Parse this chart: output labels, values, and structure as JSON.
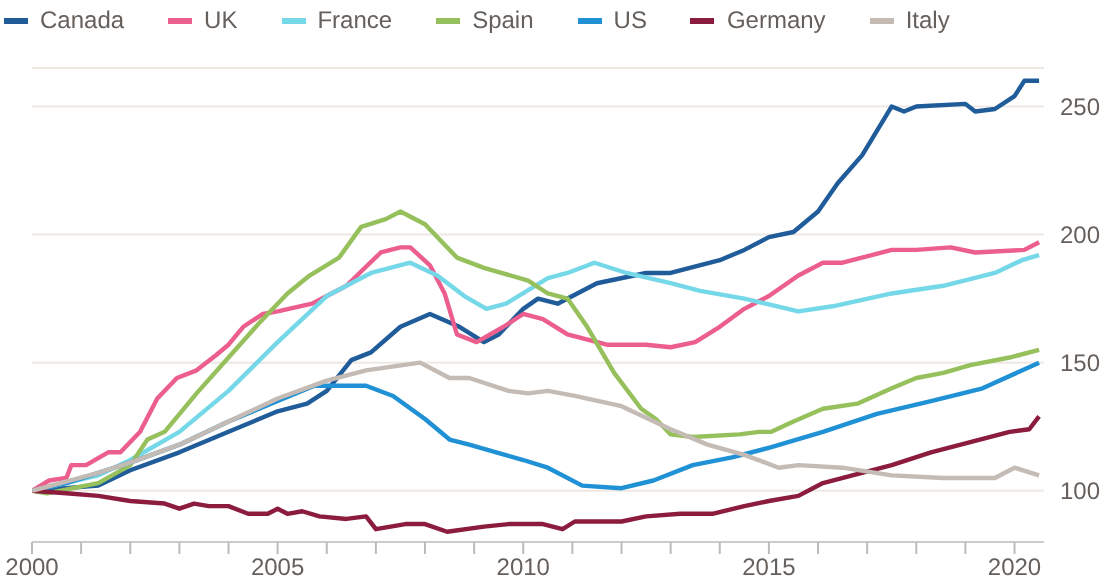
{
  "chart_data": {
    "type": "line",
    "xlim": [
      2000,
      2020.6
    ],
    "ylim": [
      80,
      265
    ],
    "xticks": [
      2000,
      {
        "value": 2001,
        "label": null
      },
      {
        "value": 2002,
        "label": null
      },
      {
        "value": 2003,
        "label": null
      },
      {
        "value": 2004,
        "label": null
      },
      2005,
      {
        "value": 2006,
        "label": null
      },
      {
        "value": 2007,
        "label": null
      },
      {
        "value": 2008,
        "label": null
      },
      {
        "value": 2009,
        "label": null
      },
      2010,
      {
        "value": 2011,
        "label": null
      },
      {
        "value": 2012,
        "label": null
      },
      {
        "value": 2013,
        "label": null
      },
      {
        "value": 2014,
        "label": null
      },
      2015,
      {
        "value": 2016,
        "label": null
      },
      {
        "value": 2017,
        "label": null
      },
      {
        "value": 2018,
        "label": null
      },
      {
        "value": 2019,
        "label": null
      },
      2020
    ],
    "yticks": [
      100,
      150,
      200,
      250
    ],
    "grid": "y",
    "legend": "top left",
    "series": [
      {
        "name": "Canada",
        "color": "#1f5c99",
        "x": [
          2000,
          2001.35,
          2002,
          2003,
          2004,
          2005,
          2005.6,
          2006,
          2006.5,
          2006.9,
          2007.5,
          2008.1,
          2008.7,
          2009.2,
          2009.5,
          2010,
          2010.3,
          2010.7,
          2011.5,
          2012.5,
          2013,
          2014,
          2014.5,
          2015,
          2015.5,
          2016,
          2016.4,
          2016.9,
          2017.5,
          2017.75,
          2018,
          2019,
          2019.2,
          2019.6,
          2020,
          2020.2,
          2020.5
        ],
        "values": [
          100,
          102,
          108,
          115,
          123,
          131,
          134,
          139,
          151,
          154,
          164,
          169,
          164,
          158,
          161,
          171,
          175,
          173,
          181,
          185,
          185,
          190,
          194,
          199,
          201,
          209,
          220,
          231,
          250,
          248,
          250,
          251,
          248,
          249,
          254,
          260,
          260
        ]
      },
      {
        "name": "UK",
        "color": "#eb5e8d",
        "x": [
          2000,
          2000.35,
          2000.7,
          2000.8,
          2001.1,
          2001.55,
          2001.8,
          2002.2,
          2002.55,
          2002.95,
          2003.35,
          2003.75,
          2004,
          2004.3,
          2004.7,
          2005,
          2005.7,
          2006.4,
          2007.1,
          2007.5,
          2007.7,
          2008.1,
          2008.4,
          2008.65,
          2009.05,
          2009.6,
          2010,
          2010.4,
          2010.9,
          2011.7,
          2012.5,
          2013,
          2013.5,
          2014,
          2014.5,
          2015,
          2015.6,
          2016.1,
          2016.5,
          2017.5,
          2018,
          2018.7,
          2019.2,
          2020.2,
          2020.5
        ],
        "values": [
          100,
          104,
          105,
          110,
          110,
          115,
          115,
          123,
          136,
          144,
          147,
          153,
          157,
          164,
          169,
          170,
          173,
          180,
          193,
          195,
          195,
          188,
          177,
          161,
          158,
          164,
          169,
          167,
          161,
          157,
          157,
          156,
          158,
          164,
          171,
          176,
          184,
          189,
          189,
          194,
          194,
          195,
          193,
          194,
          197
        ]
      },
      {
        "name": "France",
        "color": "#75d8e8",
        "x": [
          2000,
          2001.35,
          2002,
          2003,
          2004,
          2005,
          2006,
          2006.9,
          2007.7,
          2008.25,
          2008.8,
          2009.25,
          2009.65,
          2010.5,
          2010.9,
          2011.45,
          2012.1,
          2013,
          2013.6,
          2014.5,
          2015.6,
          2016.3,
          2017.5,
          2018.55,
          2019.6,
          2020.15,
          2020.5
        ],
        "values": [
          100,
          106,
          112,
          123,
          139,
          158,
          176,
          185,
          189,
          184,
          176,
          171,
          173,
          183,
          185,
          189,
          185,
          181,
          178,
          175,
          170,
          172,
          177,
          180,
          185,
          190,
          192
        ]
      },
      {
        "name": "Spain",
        "color": "#96c05b",
        "x": [
          2000,
          2000.3,
          2001.35,
          2002,
          2002.35,
          2002.7,
          2003.35,
          2004,
          2004.65,
          2005.2,
          2005.65,
          2006.25,
          2006.7,
          2007.2,
          2007.5,
          2008,
          2008.65,
          2009.2,
          2010.1,
          2010.5,
          2010.9,
          2011.3,
          2011.85,
          2012.4,
          2012.7,
          2013,
          2013.45,
          2014.4,
          2014.8,
          2015.05,
          2015.5,
          2016.1,
          2016.8,
          2017.5,
          2018,
          2018.55,
          2019.1,
          2019.9,
          2020.5
        ],
        "values": [
          100,
          99,
          103,
          110,
          120,
          123,
          138,
          152,
          166,
          177,
          184,
          191,
          203,
          206,
          209,
          204,
          191,
          187,
          182,
          177,
          175,
          164,
          146,
          132,
          128,
          122,
          121,
          122,
          123,
          123,
          127,
          132,
          134,
          140,
          144,
          146,
          149,
          152,
          155
        ]
      },
      {
        "name": "US",
        "color": "#2091d5",
        "x": [
          2000,
          2000.7,
          2002,
          2003,
          2004,
          2005,
          2005.75,
          2006.25,
          2006.8,
          2007.35,
          2008,
          2008.5,
          2008.9,
          2009.45,
          2010,
          2010.5,
          2011.2,
          2012,
          2012.65,
          2013.45,
          2014.25,
          2015.05,
          2016.1,
          2017.2,
          2018.3,
          2019.35,
          2020.5
        ],
        "values": [
          100,
          103,
          111,
          118,
          127,
          135,
          141,
          141,
          141,
          137,
          128,
          120,
          118,
          115,
          112,
          109,
          102,
          101,
          104,
          110,
          113,
          117,
          123,
          130,
          135,
          140,
          150
        ]
      },
      {
        "name": "Germany",
        "color": "#8c1c3e",
        "x": [
          2000,
          2000.7,
          2001.35,
          2002,
          2002.7,
          2003,
          2003.3,
          2003.6,
          2004,
          2004.4,
          2004.8,
          2005,
          2005.2,
          2005.5,
          2005.85,
          2006.4,
          2006.8,
          2007,
          2007.6,
          2008,
          2008.45,
          2009.2,
          2009.7,
          2010.4,
          2010.8,
          2011.05,
          2012,
          2012.5,
          2013.2,
          2013.85,
          2014.5,
          2015,
          2015.6,
          2016.1,
          2016.7,
          2017.5,
          2018.3,
          2019.1,
          2019.9,
          2020.3,
          2020.5
        ],
        "values": [
          100,
          99,
          98,
          96,
          95,
          93,
          95,
          94,
          94,
          91,
          91,
          93,
          91,
          92,
          90,
          89,
          90,
          85,
          87,
          87,
          84,
          86,
          87,
          87,
          85,
          88,
          88,
          90,
          91,
          91,
          94,
          96,
          98,
          103,
          106,
          110,
          115,
          119,
          123,
          124,
          129
        ]
      },
      {
        "name": "Italy",
        "color": "#c4bbb5",
        "x": [
          2000,
          2001.35,
          2002,
          2003,
          2004,
          2005,
          2006,
          2006.8,
          2007.9,
          2008.5,
          2008.9,
          2009.7,
          2010.1,
          2010.5,
          2011.05,
          2012,
          2013,
          2013.75,
          2014.5,
          2015.2,
          2015.6,
          2016.5,
          2017.5,
          2018.55,
          2019.6,
          2020,
          2020.5
        ],
        "values": [
          100,
          107,
          111,
          118,
          127,
          136,
          143,
          147,
          150,
          144,
          144,
          139,
          138,
          139,
          137,
          133,
          124,
          118,
          114,
          109,
          110,
          109,
          106,
          105,
          105,
          109,
          106
        ]
      }
    ]
  }
}
